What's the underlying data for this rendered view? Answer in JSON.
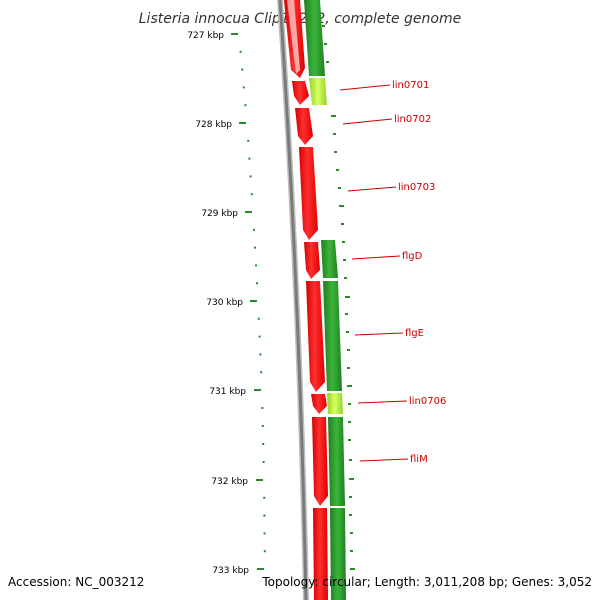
{
  "title": "Listeria innocua Clip11262, complete genome",
  "accession": "Accession: NC_003212",
  "topology": "Topology: circular; Length: 3,011,208 bp; Genes: 3,052",
  "colors": {
    "backbone": "#8a8a8a",
    "forward_gene": "#ff0000",
    "reverse_gene": "#2a9a2a",
    "reverse_gene_light": "#b8f040",
    "tick": "#2a8a2a",
    "label": "#cc0000"
  },
  "axis": {
    "unit": "kbp",
    "ticks": [
      "727 kbp",
      "728 kbp",
      "729 kbp",
      "730 kbp",
      "731 kbp",
      "732 kbp",
      "733 kbp"
    ]
  },
  "genes": [
    {
      "name": "lin0701",
      "strand": "forward"
    },
    {
      "name": "lin0702",
      "strand": "forward"
    },
    {
      "name": "lin0703",
      "strand": "forward"
    },
    {
      "name": "flgD",
      "strand": "forward"
    },
    {
      "name": "flgE",
      "strand": "forward"
    },
    {
      "name": "lin0706",
      "strand": "forward"
    },
    {
      "name": "fliM",
      "strand": "forward"
    }
  ]
}
